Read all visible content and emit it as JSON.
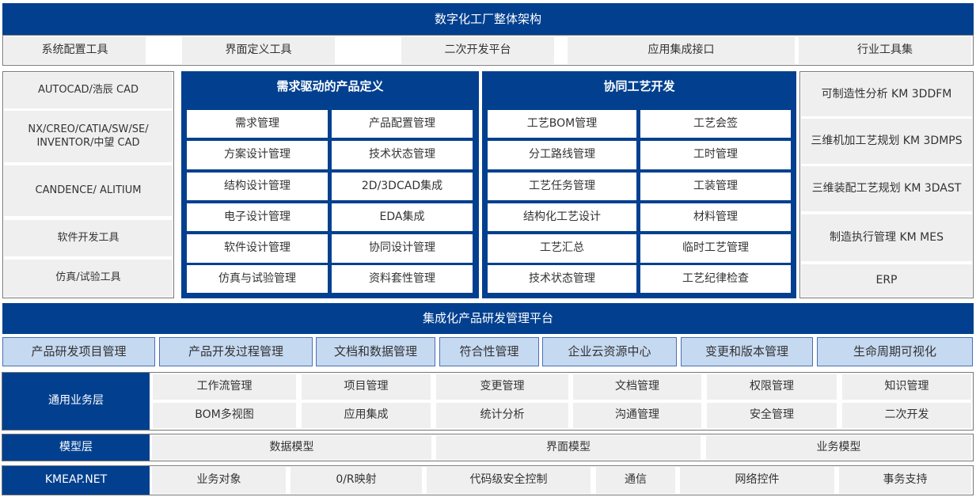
{
  "title": "数字化工厂整体架构",
  "tools": [
    "系统配置工具",
    "界面定义工具",
    "二次开发平台",
    "应用集成接口",
    "行业工具集"
  ],
  "left_column": [
    "AUTOCAD/浩辰 CAD",
    "NX/CREO/CATIA/SW/SE/ INVENTOR/中望 CAD",
    "CANDENCE/ ALITIUM",
    "软件开发工具",
    "仿真/试验工具"
  ],
  "product_definition": {
    "title": "需求驱动的产品定义",
    "items": [
      "需求管理",
      "产品配置管理",
      "方案设计管理",
      "技术状态管理",
      "结构设计管理",
      "2D/3DCAD集成",
      "电子设计管理",
      "EDA集成",
      "软件设计管理",
      "协同设计管理",
      "仿真与试验管理",
      "资料套性管理"
    ]
  },
  "process_development": {
    "title": "协同工艺开发",
    "items": [
      "工艺BOM管理",
      "工艺会签",
      "分工路线管理",
      "工时管理",
      "工艺任务管理",
      "工装管理",
      "结构化工艺设计",
      "材料管理",
      "工艺汇总",
      "临时工艺管理",
      "技术状态管理",
      "工艺纪律检查"
    ]
  },
  "right_column": [
    "可制造性分析 KM 3DDFM",
    "三维机加工艺规划 KM 3DMPS",
    "三维装配工艺规划 KM 3DAST",
    "制造执行管理 KM MES",
    "ERP"
  ],
  "platform": {
    "title": "集成化产品研发管理平台",
    "items": [
      "产品研发项目管理",
      "产品开发过程管理",
      "文档和数据管理",
      "符合性管理",
      "企业云资源中心",
      "变更和版本管理",
      "生命周期可视化"
    ]
  },
  "business_layer": {
    "label": "通用业务层",
    "items": [
      "工作流管理",
      "项目管理",
      "变更管理",
      "文档管理",
      "权限管理",
      "知识管理",
      "BOM多视图",
      "应用集成",
      "统计分析",
      "沟通管理",
      "安全管理",
      "二次开发"
    ]
  },
  "model_layer": {
    "label": "模型层",
    "items": [
      "数据模型",
      "界面模型",
      "业务模型"
    ]
  },
  "kmeap_layer": {
    "label": "KMEAP.NET",
    "items": [
      "业务对象",
      "0/R映射",
      "代码级安全控制",
      "通信",
      "网络控件",
      "事务支持"
    ]
  },
  "colors": {
    "primary": "#02408f",
    "light": "#c5d9f1",
    "cell": "#efefef"
  }
}
